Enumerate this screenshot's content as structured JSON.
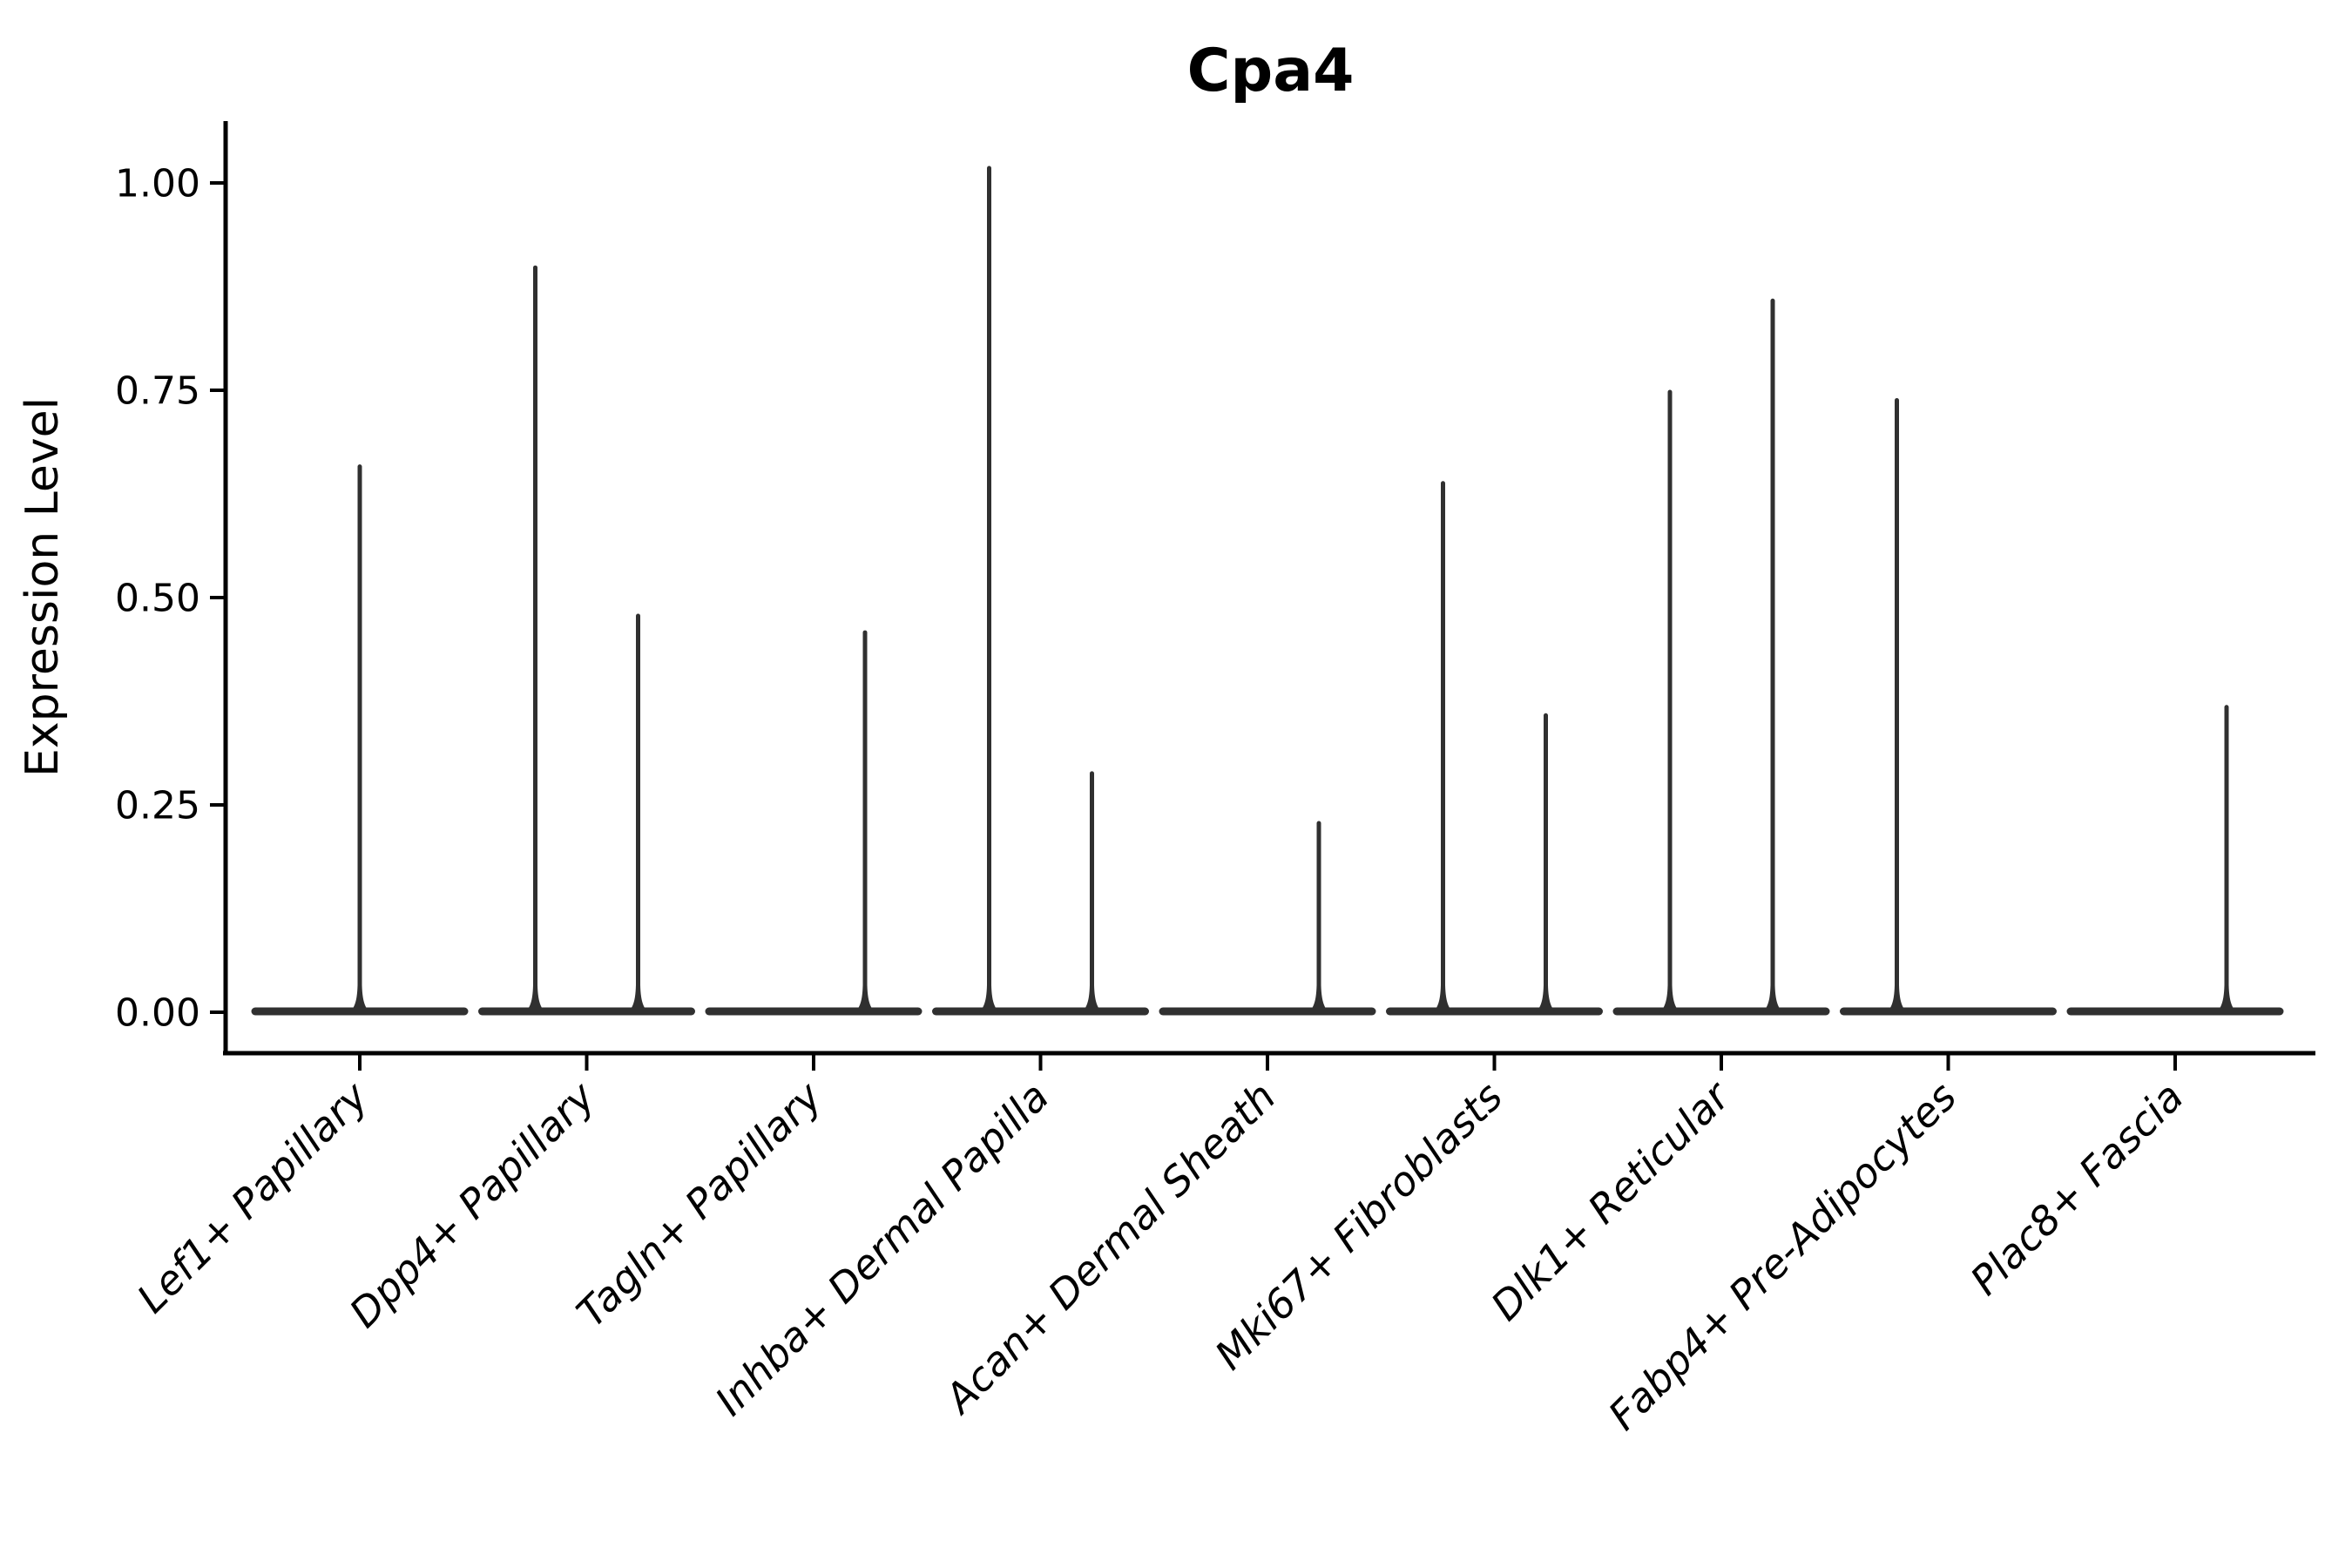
{
  "chart_data": {
    "type": "violin",
    "title": "Cpa4",
    "ylabel": "Expression Level",
    "xlabel": "",
    "ylim": [
      -0.05,
      1.075
    ],
    "grid": false,
    "legend": "none",
    "yticks": [
      {
        "label": "0.00",
        "value": 0.0
      },
      {
        "label": "0.25",
        "value": 0.25
      },
      {
        "label": "0.50",
        "value": 0.5
      },
      {
        "label": "0.75",
        "value": 0.75
      },
      {
        "label": "1.00",
        "value": 1.0
      }
    ],
    "baseline_value": 0.0,
    "description": "Violin plot of Cpa4 expression; each cluster shows a flat violin body at 0 with thin spikes rising to the maximum expression of sparse expressing cells",
    "categories": [
      {
        "label": "Lef1+ Papillary",
        "spikes": [
          {
            "pos": "center",
            "max": 0.66
          }
        ]
      },
      {
        "label": "Dpp4+ Papillary",
        "spikes": [
          {
            "pos": "left",
            "max": 0.9
          },
          {
            "pos": "right",
            "max": 0.48
          }
        ]
      },
      {
        "label": "Tagln+ Papillary",
        "spikes": [
          {
            "pos": "right",
            "max": 0.46
          }
        ]
      },
      {
        "label": "Inhba+ Dermal Papilla",
        "spikes": [
          {
            "pos": "left",
            "max": 1.02
          },
          {
            "pos": "right",
            "max": 0.29
          }
        ]
      },
      {
        "label": "Acan+ Dermal Sheath",
        "spikes": [
          {
            "pos": "right",
            "max": 0.23
          }
        ]
      },
      {
        "label": "Mki67+ Fibroblasts",
        "spikes": [
          {
            "pos": "left",
            "max": 0.64
          },
          {
            "pos": "right",
            "max": 0.36
          }
        ]
      },
      {
        "label": "Dlk1+ Reticular",
        "spikes": [
          {
            "pos": "left",
            "max": 0.75
          },
          {
            "pos": "right",
            "max": 0.86
          }
        ]
      },
      {
        "label": "Fabp4+ Pre-Adipocytes",
        "spikes": [
          {
            "pos": "left",
            "max": 0.74
          }
        ]
      },
      {
        "label": "Plac8+ Fascia",
        "spikes": [
          {
            "pos": "right",
            "max": 0.37
          }
        ]
      }
    ],
    "colors": {
      "violin_line": "#303030",
      "spine": "#000000",
      "text": "#000000",
      "background": "#ffffff"
    }
  }
}
